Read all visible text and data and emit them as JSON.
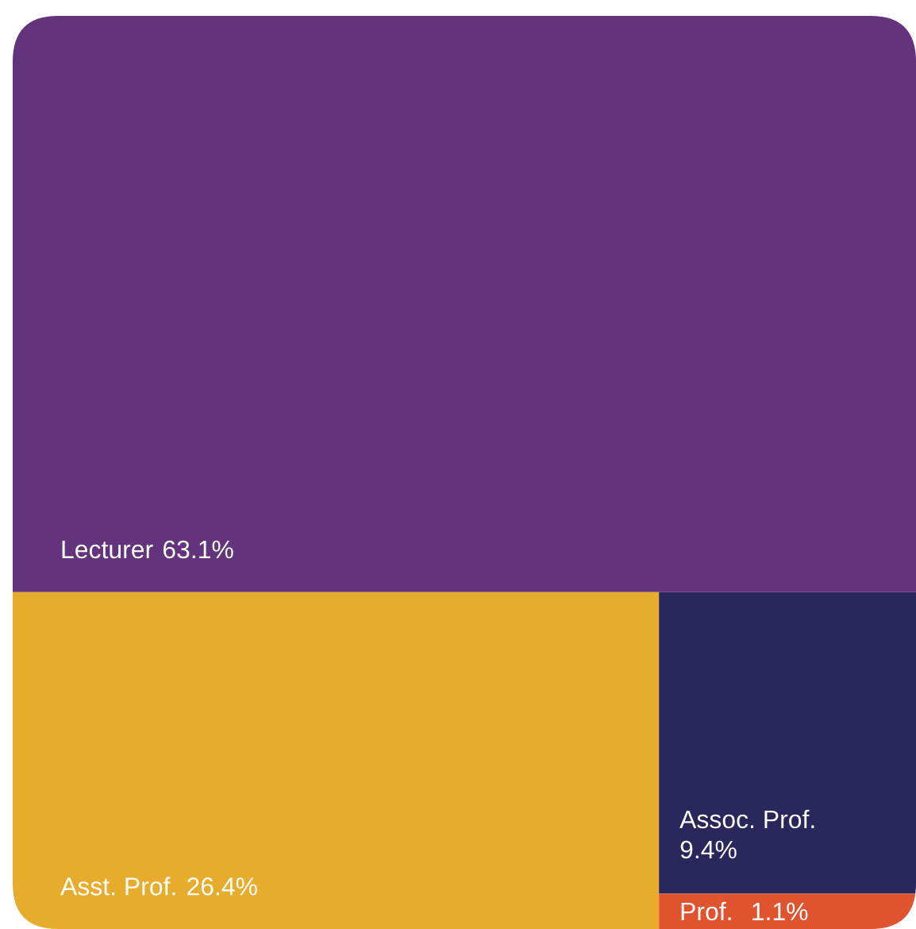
{
  "chart_data": {
    "type": "other",
    "categories": [
      "Lecturer",
      "Asst. Prof.",
      "Assoc. Prof.",
      "Prof."
    ],
    "values": [
      63.1,
      26.4,
      9.4,
      1.1
    ],
    "value_labels": [
      "63.1%",
      "26.4%",
      "9.4%",
      "1.1%"
    ],
    "colors": [
      "#63347b",
      "#e8ac2c",
      "#29275b",
      "#e0532f"
    ]
  }
}
